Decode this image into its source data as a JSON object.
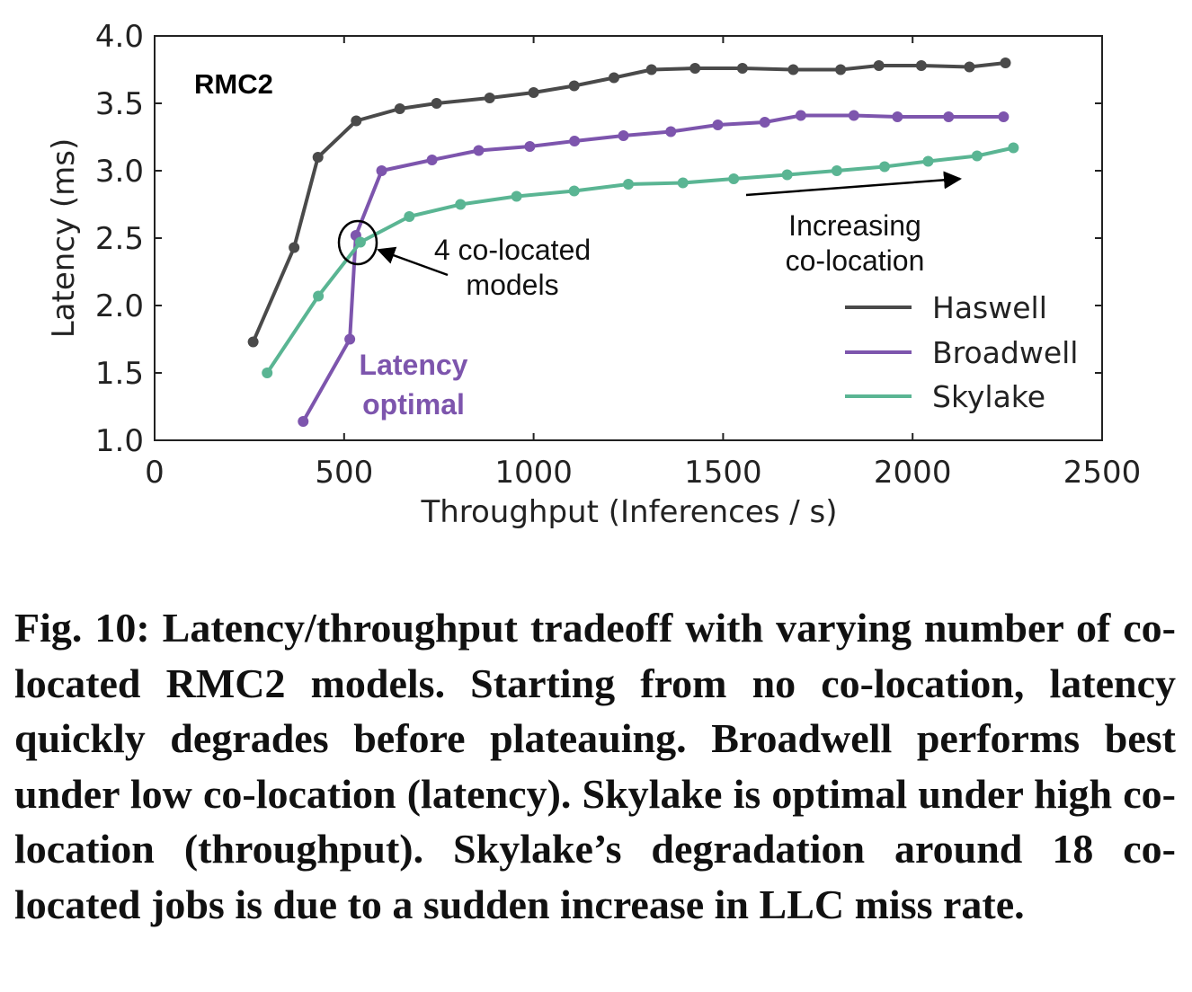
{
  "chart_data": {
    "type": "line",
    "xlabel": "Throughput (Inferences / s)",
    "ylabel": "Latency (ms)",
    "xlim": [
      0,
      2500
    ],
    "ylim": [
      1.0,
      4.0
    ],
    "xticks": [
      0,
      500,
      1000,
      1500,
      2000,
      2500
    ],
    "yticks": [
      1.0,
      1.5,
      2.0,
      2.5,
      3.0,
      3.5,
      4.0
    ],
    "xtick_labels": [
      "0",
      "500",
      "1000",
      "1500",
      "2000",
      "2500"
    ],
    "ytick_labels": [
      "1.0",
      "1.5",
      "2.0",
      "2.5",
      "3.0",
      "3.5",
      "4.0"
    ],
    "grid": false,
    "legend_position": "lower-right",
    "panel_label": "RMC2",
    "annotations": {
      "colocated": [
        "4 co-located",
        "models"
      ],
      "latency_optimal": [
        "Latency",
        "optimal"
      ],
      "increasing": [
        "Increasing",
        "co-location"
      ]
    },
    "series": [
      {
        "name": "Haswell",
        "color": "#4a4a4a",
        "x": [
          260,
          368,
          431,
          532,
          647,
          744,
          884,
          1000,
          1107,
          1212,
          1311,
          1426,
          1551,
          1685,
          1810,
          1911,
          2023,
          2150,
          2245
        ],
        "y": [
          1.73,
          2.43,
          3.1,
          3.37,
          3.46,
          3.5,
          3.54,
          3.58,
          3.63,
          3.69,
          3.75,
          3.76,
          3.76,
          3.75,
          3.75,
          3.78,
          3.78,
          3.77,
          3.8
        ]
      },
      {
        "name": "Broadwell",
        "color": "#7d55ad",
        "x": [
          392,
          515,
          531,
          599,
          732,
          855,
          990,
          1108,
          1237,
          1362,
          1486,
          1610,
          1705,
          1845,
          1960,
          2095,
          2240
        ],
        "y": [
          1.14,
          1.75,
          2.52,
          3.0,
          3.08,
          3.15,
          3.18,
          3.22,
          3.26,
          3.29,
          3.34,
          3.36,
          3.41,
          3.41,
          3.4,
          3.4,
          3.4
        ]
      },
      {
        "name": "Skylake",
        "color": "#5ab593",
        "x": [
          297,
          432,
          543,
          672,
          807,
          955,
          1107,
          1250,
          1394,
          1528,
          1669,
          1800,
          1926,
          2041,
          2170,
          2266
        ],
        "y": [
          1.5,
          2.07,
          2.47,
          2.66,
          2.75,
          2.81,
          2.85,
          2.9,
          2.91,
          2.94,
          2.97,
          3.0,
          3.03,
          3.07,
          3.11,
          3.17
        ]
      }
    ]
  },
  "caption": "Fig. 10: Latency/throughput tradeoff with varying number of co-located RMC2 models. Starting from no co-location, latency quickly degrades before plateauing. Broadwell performs best under low co-location (latency). Skylake is optimal under high co-location (throughput). Skylake’s degradation around 18 co-located jobs is due to a sudden increase in LLC miss rate."
}
